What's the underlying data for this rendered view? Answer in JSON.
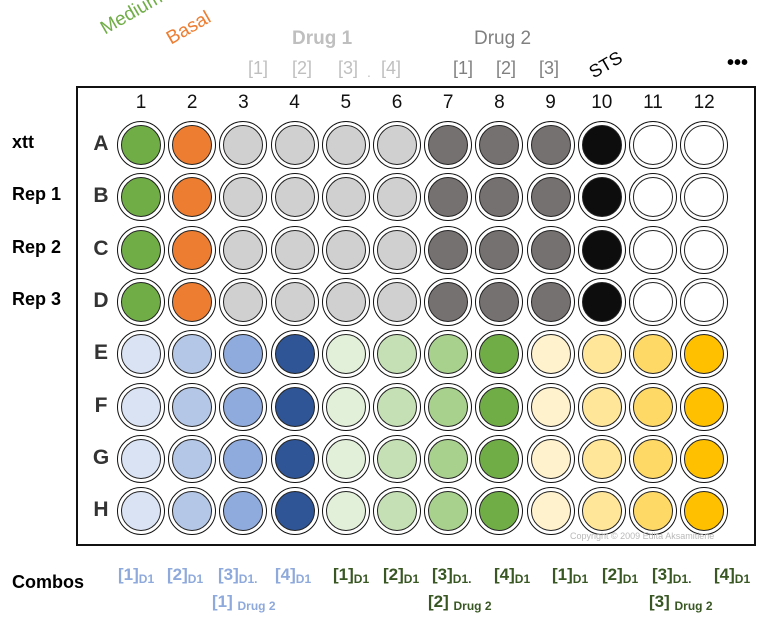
{
  "top_labels": {
    "medium": {
      "text": "Medium",
      "color": "#70ad47"
    },
    "basal": {
      "text": "Basal",
      "color": "#ed7d31"
    },
    "drug1": {
      "text": "Drug 1",
      "color": "#bfbfbf"
    },
    "drug2": {
      "text": "Drug 2",
      "color": "#808080"
    },
    "sts": {
      "text": "STS",
      "color": "#000000"
    },
    "more": "•••",
    "drug1_conc": [
      "[1]",
      "[2]",
      "[3]",
      "[4]"
    ],
    "drug1_dot": ".",
    "drug2_conc": [
      "[1]",
      "[2]",
      "[3]"
    ]
  },
  "columns": [
    "1",
    "2",
    "3",
    "4",
    "5",
    "6",
    "7",
    "8",
    "9",
    "10",
    "11",
    "12"
  ],
  "rows": [
    "A",
    "B",
    "C",
    "D",
    "E",
    "F",
    "G",
    "H"
  ],
  "row_side_labels": [
    "xtt",
    "Rep 1",
    "Rep 2",
    "Rep 3"
  ],
  "well_colors": {
    "A": [
      "#70ad47",
      "#ed7d31",
      "#d0d0d0",
      "#d0d0d0",
      "#d0d0d0",
      "#d0d0d0",
      "#767171",
      "#767171",
      "#767171",
      "#0d0d0d",
      "#ffffff",
      "#ffffff"
    ],
    "B": [
      "#70ad47",
      "#ed7d31",
      "#d0d0d0",
      "#d0d0d0",
      "#d0d0d0",
      "#d0d0d0",
      "#767171",
      "#767171",
      "#767171",
      "#0d0d0d",
      "#ffffff",
      "#ffffff"
    ],
    "C": [
      "#70ad47",
      "#ed7d31",
      "#d0d0d0",
      "#d0d0d0",
      "#d0d0d0",
      "#d0d0d0",
      "#767171",
      "#767171",
      "#767171",
      "#0d0d0d",
      "#ffffff",
      "#ffffff"
    ],
    "D": [
      "#70ad47",
      "#ed7d31",
      "#d0d0d0",
      "#d0d0d0",
      "#d0d0d0",
      "#d0d0d0",
      "#767171",
      "#767171",
      "#767171",
      "#0d0d0d",
      "#ffffff",
      "#ffffff"
    ],
    "E": [
      "#dae3f3",
      "#b4c7e7",
      "#8faadc",
      "#2f5597",
      "#e2f0d9",
      "#c5e0b4",
      "#a9d18e",
      "#70ad47",
      "#fff2cc",
      "#ffe699",
      "#ffd966",
      "#ffc000"
    ],
    "F": [
      "#dae3f3",
      "#b4c7e7",
      "#8faadc",
      "#2f5597",
      "#e2f0d9",
      "#c5e0b4",
      "#a9d18e",
      "#70ad47",
      "#fff2cc",
      "#ffe699",
      "#ffd966",
      "#ffc000"
    ],
    "G": [
      "#dae3f3",
      "#b4c7e7",
      "#8faadc",
      "#2f5597",
      "#e2f0d9",
      "#c5e0b4",
      "#a9d18e",
      "#70ad47",
      "#fff2cc",
      "#ffe699",
      "#ffd966",
      "#ffc000"
    ],
    "H": [
      "#dae3f3",
      "#b4c7e7",
      "#8faadc",
      "#2f5597",
      "#e2f0d9",
      "#c5e0b4",
      "#a9d18e",
      "#70ad47",
      "#fff2cc",
      "#ffe699",
      "#ffd966",
      "#ffc000"
    ]
  },
  "copyright": "Copyright © 2009 Edita Aksamitiene",
  "combos": {
    "label": "Combos",
    "blue": {
      "color": "#8ea9db",
      "d1": [
        "[1]",
        "[2]",
        "[3]",
        "[4]"
      ],
      "sub": "D1",
      "dot": ".",
      "drug2_bracket": "[1]",
      "drug2_sub": "Drug 2"
    },
    "green": {
      "color": "#385723",
      "d1": [
        "[1]",
        "[2]",
        "[3]",
        "[4]"
      ],
      "sub": "D1",
      "dot": ".",
      "drug2_bracket": "[2]",
      "drug2_sub": "Drug 2"
    },
    "green2": {
      "d1": [
        "[1]",
        "[2]",
        "[3]",
        "[4]"
      ],
      "sub": "D1",
      "dot": ".",
      "drug2_bracket": "[3]",
      "drug2_sub": "Drug 2"
    }
  }
}
